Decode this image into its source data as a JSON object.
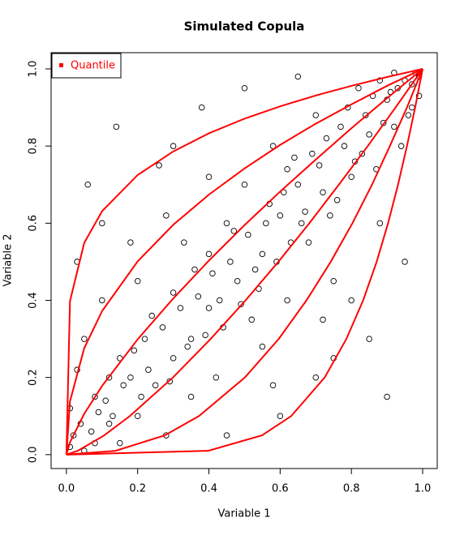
{
  "chart_data": {
    "type": "scatter",
    "title": "Simulated Copula",
    "x_label": "Variable 1",
    "y_label": "Variable 2",
    "xlim": [
      -0.043,
      1.041
    ],
    "ylim": [
      -0.036,
      1.042
    ],
    "xticks": [
      {
        "value": 0,
        "label": "0.0"
      },
      0.2,
      0.4,
      0.6,
      0.8,
      {
        "value": 1,
        "label": "1.0"
      }
    ],
    "yticks": [
      {
        "value": 0,
        "label": "0.0"
      },
      0.2,
      0.4,
      0.6,
      0.8,
      {
        "value": 1,
        "label": "1.0"
      }
    ],
    "legend": "top-left",
    "points": {
      "color": "#000000",
      "x": [
        0.02,
        0.05,
        0.01,
        0.08,
        0.03,
        0.12,
        0.15,
        0.1,
        0.2,
        0.22,
        0.25,
        0.3,
        0.28,
        0.35,
        0.33,
        0.4,
        0.42,
        0.45,
        0.48,
        0.5,
        0.52,
        0.55,
        0.58,
        0.6,
        0.62,
        0.65,
        0.68,
        0.7,
        0.72,
        0.75,
        0.78,
        0.8,
        0.82,
        0.85,
        0.88,
        0.9,
        0.92,
        0.95,
        0.97,
        0.99,
        0.06,
        0.14,
        0.18,
        0.38,
        0.26,
        0.5,
        0.65,
        0.7,
        0.85,
        0.9,
        0.6,
        0.95,
        0.8,
        0.45,
        0.35,
        0.15,
        0.05,
        0.03,
        0.08,
        0.12,
        0.18,
        0.24,
        0.3,
        0.36,
        0.4,
        0.44,
        0.47,
        0.53,
        0.57,
        0.62,
        0.66,
        0.69,
        0.73,
        0.76,
        0.79,
        0.83,
        0.86,
        0.89,
        0.93,
        0.96,
        0.98,
        0.01,
        0.04,
        0.07,
        0.09,
        0.11,
        0.13,
        0.16,
        0.19,
        0.21,
        0.23,
        0.27,
        0.29,
        0.32,
        0.34,
        0.37,
        0.39,
        0.41,
        0.43,
        0.46,
        0.49,
        0.51,
        0.54,
        0.56,
        0.59,
        0.61,
        0.63,
        0.64,
        0.67,
        0.71,
        0.74,
        0.77,
        0.81,
        0.84,
        0.87,
        0.91,
        0.94,
        0.97,
        0.99,
        0.92,
        0.88,
        0.2,
        0.28,
        0.55,
        0.72,
        0.1,
        0.3,
        0.4,
        0.75,
        0.58
      ],
      "y": [
        0.05,
        0.01,
        0.12,
        0.03,
        0.22,
        0.08,
        0.25,
        0.4,
        0.1,
        0.3,
        0.18,
        0.42,
        0.05,
        0.3,
        0.55,
        0.38,
        0.2,
        0.6,
        0.45,
        0.7,
        0.35,
        0.52,
        0.8,
        0.62,
        0.4,
        0.7,
        0.55,
        0.88,
        0.68,
        0.45,
        0.8,
        0.72,
        0.95,
        0.83,
        0.6,
        0.92,
        0.85,
        0.97,
        0.9,
        0.98,
        0.7,
        0.85,
        0.55,
        0.9,
        0.75,
        0.95,
        0.98,
        0.2,
        0.3,
        0.15,
        0.1,
        0.5,
        0.4,
        0.05,
        0.15,
        0.03,
        0.3,
        0.5,
        0.15,
        0.2,
        0.2,
        0.36,
        0.25,
        0.48,
        0.52,
        0.33,
        0.58,
        0.48,
        0.65,
        0.74,
        0.6,
        0.78,
        0.82,
        0.66,
        0.9,
        0.78,
        0.93,
        0.86,
        0.95,
        0.88,
        0.99,
        0.02,
        0.08,
        0.06,
        0.11,
        0.14,
        0.1,
        0.18,
        0.27,
        0.15,
        0.22,
        0.33,
        0.19,
        0.38,
        0.28,
        0.41,
        0.31,
        0.47,
        0.4,
        0.5,
        0.39,
        0.57,
        0.43,
        0.6,
        0.5,
        0.68,
        0.55,
        0.77,
        0.63,
        0.75,
        0.62,
        0.85,
        0.76,
        0.88,
        0.74,
        0.94,
        0.8,
        0.96,
        0.93,
        0.99,
        0.97,
        0.45,
        0.62,
        0.28,
        0.35,
        0.6,
        0.8,
        0.72,
        0.25,
        0.18
      ]
    },
    "series": [
      {
        "name": "Quantile",
        "color": "#ff0000",
        "lines": [
          {
            "x": [
              0,
              0.01,
              0.05,
              0.1,
              0.2,
              0.3,
              0.4,
              0.5,
              0.6,
              0.7,
              0.8,
              0.9,
              1
            ],
            "y": [
              0,
              0.398,
              0.549,
              0.631,
              0.725,
              0.786,
              0.833,
              0.871,
              0.903,
              0.931,
              0.956,
              0.979,
              1
            ]
          },
          {
            "x": [
              0,
              0.01,
              0.05,
              0.1,
              0.2,
              0.3,
              0.4,
              0.5,
              0.6,
              0.7,
              0.8,
              0.9,
              1
            ],
            "y": [
              0,
              0.138,
              0.276,
              0.372,
              0.501,
              0.596,
              0.674,
              0.742,
              0.803,
              0.858,
              0.908,
              0.956,
              1
            ]
          },
          {
            "x": [
              0,
              0.01,
              0.05,
              0.1,
              0.2,
              0.3,
              0.4,
              0.5,
              0.6,
              0.7,
              0.8,
              0.9,
              1
            ],
            "y": [
              0,
              0.032,
              0.106,
              0.178,
              0.299,
              0.405,
              0.503,
              0.595,
              0.682,
              0.765,
              0.846,
              0.924,
              1
            ]
          },
          {
            "x": [
              0,
              0.032,
              0.106,
              0.178,
              0.299,
              0.405,
              0.503,
              0.595,
              0.682,
              0.765,
              0.846,
              0.924,
              1
            ],
            "y": [
              0,
              0.01,
              0.05,
              0.1,
              0.2,
              0.3,
              0.4,
              0.5,
              0.6,
              0.7,
              0.8,
              0.9,
              1
            ]
          },
          {
            "x": [
              0,
              0.138,
              0.276,
              0.372,
              0.501,
              0.596,
              0.674,
              0.742,
              0.803,
              0.858,
              0.908,
              0.956,
              1
            ],
            "y": [
              0,
              0.01,
              0.05,
              0.1,
              0.2,
              0.3,
              0.4,
              0.5,
              0.6,
              0.7,
              0.8,
              0.9,
              1
            ]
          },
          {
            "x": [
              0,
              0.398,
              0.549,
              0.631,
              0.725,
              0.786,
              0.833,
              0.871,
              0.903,
              0.931,
              0.956,
              0.979,
              1
            ],
            "y": [
              0,
              0.01,
              0.05,
              0.1,
              0.2,
              0.3,
              0.4,
              0.5,
              0.6,
              0.7,
              0.8,
              0.9,
              1
            ]
          }
        ]
      }
    ]
  }
}
